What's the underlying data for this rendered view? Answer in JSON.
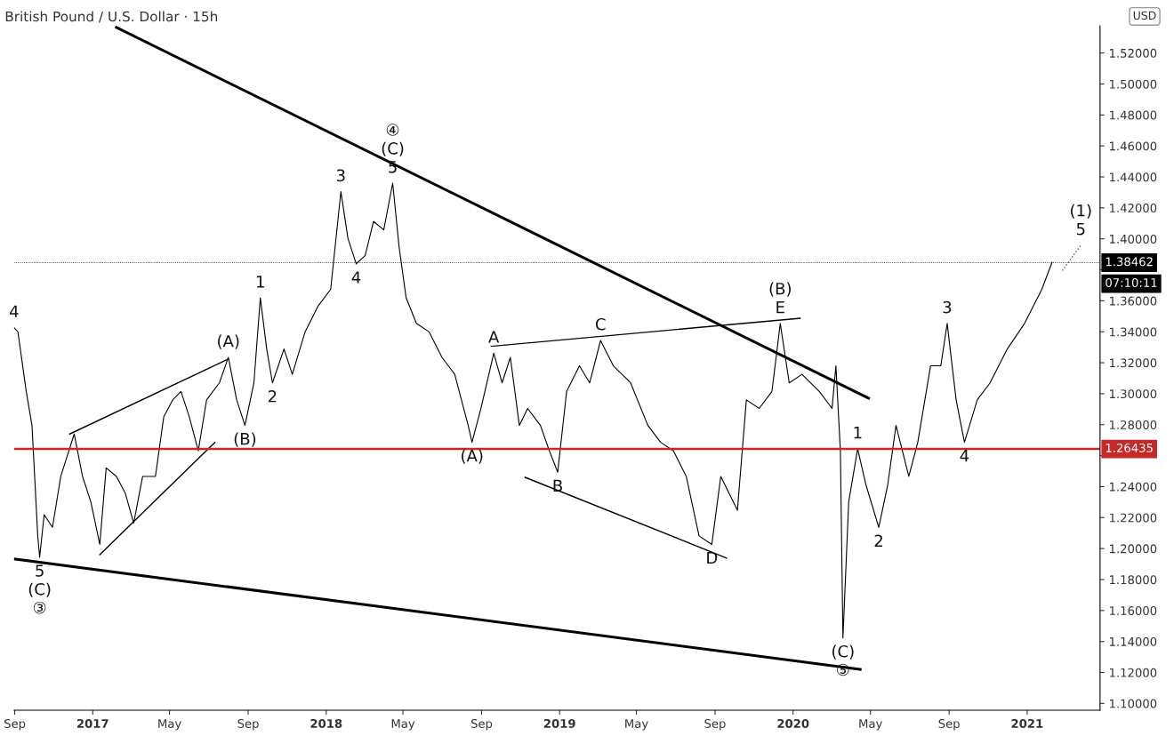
{
  "chart_data": {
    "type": "line",
    "title": "British Pound / U.S. Dollar · 15h",
    "xlim": [
      "2016-08-31",
      "2021-04-25"
    ],
    "xticks": [
      {
        "value": "2016-09-01",
        "label": "Sep"
      },
      {
        "value": "2017-01-01",
        "label": "2017"
      },
      {
        "value": "2017-05-01",
        "label": "May"
      },
      {
        "value": "2017-09-01",
        "label": "Sep"
      },
      {
        "value": "2018-01-01",
        "label": "2018"
      },
      {
        "value": "2018-05-01",
        "label": "May"
      },
      {
        "value": "2018-09-01",
        "label": "Sep"
      },
      {
        "value": "2019-01-01",
        "label": "2019"
      },
      {
        "value": "2019-05-01",
        "label": "May"
      },
      {
        "value": "2019-09-01",
        "label": "Sep"
      },
      {
        "value": "2020-01-01",
        "label": "2020"
      },
      {
        "value": "2020-05-01",
        "label": "May"
      },
      {
        "value": "2020-09-01",
        "label": "Sep"
      },
      {
        "value": "2021-01-01",
        "label": "2021"
      }
    ],
    "ylim": [
      1.0956,
      1.5376
    ],
    "yticks": [
      {
        "value": 1.1,
        "label": "1.10000"
      },
      {
        "value": 1.12,
        "label": "1.12000"
      },
      {
        "value": 1.14,
        "label": "1.14000"
      },
      {
        "value": 1.16,
        "label": "1.16000"
      },
      {
        "value": 1.18,
        "label": "1.18000"
      },
      {
        "value": 1.2,
        "label": "1.20000"
      },
      {
        "value": 1.22,
        "label": "1.22000"
      },
      {
        "value": 1.24,
        "label": "1.24000"
      },
      {
        "value": 1.26,
        "label": null
      },
      {
        "value": 1.28,
        "label": "1.28000"
      },
      {
        "value": 1.3,
        "label": "1.30000"
      },
      {
        "value": 1.32,
        "label": "1.32000"
      },
      {
        "value": 1.34,
        "label": "1.34000"
      },
      {
        "value": 1.36,
        "label": "1.36000"
      },
      {
        "value": 1.38,
        "label": null
      },
      {
        "value": 1.4,
        "label": "1.40000"
      },
      {
        "value": 1.42,
        "label": "1.42000"
      },
      {
        "value": 1.44,
        "label": "1.44000"
      },
      {
        "value": 1.46,
        "label": "1.46000"
      },
      {
        "value": 1.48,
        "label": "1.48000"
      },
      {
        "value": 1.5,
        "label": "1.50000"
      },
      {
        "value": 1.52,
        "label": "1.52000"
      }
    ],
    "grid": false,
    "legend": false,
    "marker": "none",
    "series": [
      {
        "color": "#000000",
        "line_style": "solid",
        "x": [
          "2016-08-31",
          "2016-09-06",
          "2016-09-19",
          "2016-09-28",
          "2016-10-07",
          "2016-10-10",
          "2016-10-17",
          "2016-10-30",
          "2016-11-12",
          "2016-12-03",
          "2016-12-16",
          "2016-12-29",
          "2017-01-12",
          "2017-01-22",
          "2017-02-07",
          "2017-02-21",
          "2017-03-06",
          "2017-03-20",
          "2017-04-09",
          "2017-04-22",
          "2017-05-06",
          "2017-05-19",
          "2017-06-01",
          "2017-06-15",
          "2017-06-28",
          "2017-07-18",
          "2017-08-01",
          "2017-08-14",
          "2017-08-27",
          "2017-09-10",
          "2017-09-20",
          "2017-09-30",
          "2017-10-09",
          "2017-10-27",
          "2017-11-09",
          "2017-11-29",
          "2017-12-19",
          "2018-01-08",
          "2018-01-24",
          "2018-02-04",
          "2018-02-17",
          "2018-03-03",
          "2018-03-16",
          "2018-04-01",
          "2018-04-15",
          "2018-04-25",
          "2018-05-06",
          "2018-05-22",
          "2018-06-11",
          "2018-07-01",
          "2018-07-21",
          "2018-08-11",
          "2018-08-17",
          "2018-08-31",
          "2018-09-20",
          "2018-10-03",
          "2018-10-16",
          "2018-10-30",
          "2018-11-12",
          "2018-12-02",
          "2018-12-16",
          "2018-12-29",
          "2019-01-12",
          "2019-02-01",
          "2019-02-17",
          "2019-03-06",
          "2019-03-26",
          "2019-04-22",
          "2019-05-19",
          "2019-06-08",
          "2019-06-28",
          "2019-07-18",
          "2019-08-07",
          "2019-08-27",
          "2019-09-10",
          "2019-09-23",
          "2019-10-06",
          "2019-10-20",
          "2019-11-09",
          "2019-11-29",
          "2019-12-12",
          "2019-12-26",
          "2020-01-15",
          "2020-02-11",
          "2020-03-02",
          "2020-03-08",
          "2020-03-15",
          "2020-03-19",
          "2020-03-28",
          "2020-04-11",
          "2020-04-24",
          "2020-05-14",
          "2020-05-28",
          "2020-06-10",
          "2020-06-30",
          "2020-07-14",
          "2020-08-03",
          "2020-08-19",
          "2020-08-29",
          "2020-09-12",
          "2020-09-25",
          "2020-10-15",
          "2020-11-04",
          "2020-12-01",
          "2020-12-28",
          "2021-01-24",
          "2021-02-09"
        ],
        "values": [
          1.3427,
          1.3399,
          1.3015,
          1.2795,
          1.2082,
          1.1944,
          1.2219,
          1.2137,
          1.2466,
          1.274,
          1.2466,
          1.2301,
          1.2027,
          1.2521,
          1.2466,
          1.2356,
          1.2164,
          1.2466,
          1.2466,
          1.285,
          1.296,
          1.3015,
          1.285,
          1.2631,
          1.296,
          1.307,
          1.3235,
          1.296,
          1.2795,
          1.307,
          1.3619,
          1.3289,
          1.307,
          1.3289,
          1.3125,
          1.3399,
          1.3564,
          1.3674,
          1.4305,
          1.4003,
          1.3838,
          1.3893,
          1.4113,
          1.4058,
          1.436,
          1.3948,
          1.3619,
          1.3454,
          1.3399,
          1.3235,
          1.3125,
          1.2795,
          1.2686,
          1.2905,
          1.3262,
          1.307,
          1.3235,
          1.2795,
          1.2905,
          1.2795,
          1.2631,
          1.2493,
          1.3015,
          1.318,
          1.307,
          1.3344,
          1.318,
          1.307,
          1.2795,
          1.2686,
          1.2631,
          1.2466,
          1.2082,
          1.2027,
          1.2466,
          1.2356,
          1.2247,
          1.296,
          1.2905,
          1.3015,
          1.3454,
          1.307,
          1.3125,
          1.3015,
          1.2905,
          1.318,
          1.2631,
          1.1423,
          1.2301,
          1.2644,
          1.2411,
          1.2137,
          1.2411,
          1.2795,
          1.2466,
          1.2686,
          1.318,
          1.318,
          1.3454,
          1.296,
          1.2686,
          1.296,
          1.307,
          1.3289,
          1.3454,
          1.3674,
          1.3849
        ]
      },
      {
        "color": "#000000",
        "line_style": "solid",
        "x": [
          "2017-02-07",
          "2020-04-28"
        ],
        "values": [
          1.5365,
          1.2971
        ]
      },
      {
        "color": "#000000",
        "line_style": "solid",
        "x": [
          "2016-08-31",
          "2020-04-15"
        ],
        "values": [
          1.1933,
          1.122
        ]
      },
      {
        "color": "#000000",
        "line_style": "solid",
        "x": [
          "2016-11-26",
          "2017-08-01"
        ],
        "values": [
          1.274,
          1.3224
        ]
      },
      {
        "color": "#000000",
        "line_style": "solid",
        "x": [
          "2017-01-12",
          "2017-07-11"
        ],
        "values": [
          1.1961,
          1.2686
        ]
      },
      {
        "color": "#000000",
        "line_style": "solid",
        "x": [
          "2018-09-16",
          "2020-01-12"
        ],
        "values": [
          1.3306,
          1.3487
        ]
      },
      {
        "color": "#000000",
        "line_style": "solid",
        "x": [
          "2018-11-08",
          "2019-09-19"
        ],
        "values": [
          1.246,
          1.1939
        ]
      },
      {
        "color": "#555555",
        "line_style": "dotted",
        "x": [
          "2021-02-25",
          "2021-03-26"
        ],
        "values": [
          1.3795,
          1.3959
        ]
      }
    ],
    "ref_lines": [
      {
        "axis": "y",
        "value": 1.26435,
        "label": "1.26435",
        "color": "#c62828",
        "line_style": "solid"
      },
      {
        "axis": "y",
        "value": 1.38462,
        "label": "1.38462",
        "color": "#000000",
        "line_style": "dotted"
      }
    ],
    "annotations": [
      {
        "text": "4",
        "x": "2016-08-31",
        "y": 1.3427
      },
      {
        "text": "5",
        "x": "2016-10-10",
        "y": 1.1944
      },
      {
        "text": "(C)",
        "x": "2016-10-10",
        "y": 1.1944
      },
      {
        "text": "③",
        "x": "2016-10-10",
        "y": 1.1944
      },
      {
        "text": "(A)",
        "x": "2017-08-01",
        "y": 1.3235
      },
      {
        "text": "(B)",
        "x": "2017-08-27",
        "y": 1.2795
      },
      {
        "text": "1",
        "x": "2017-09-20",
        "y": 1.3619
      },
      {
        "text": "2",
        "x": "2017-10-09",
        "y": 1.307
      },
      {
        "text": "3",
        "x": "2018-01-24",
        "y": 1.4305
      },
      {
        "text": "4",
        "x": "2018-02-17",
        "y": 1.3838
      },
      {
        "text": "5",
        "x": "2018-04-15",
        "y": 1.436
      },
      {
        "text": "(C)",
        "x": "2018-04-15",
        "y": 1.436
      },
      {
        "text": "④",
        "x": "2018-04-15",
        "y": 1.436
      },
      {
        "text": "(A)",
        "x": "2018-08-17",
        "y": 1.2686
      },
      {
        "text": "A",
        "x": "2018-09-20",
        "y": 1.3262
      },
      {
        "text": "B",
        "x": "2018-12-29",
        "y": 1.2493
      },
      {
        "text": "C",
        "x": "2019-03-06",
        "y": 1.3344
      },
      {
        "text": "D",
        "x": "2019-08-27",
        "y": 1.2027
      },
      {
        "text": "E",
        "x": "2019-12-12",
        "y": 1.3454
      },
      {
        "text": "(B)",
        "x": "2019-12-12",
        "y": 1.3454
      },
      {
        "text": "(C)",
        "x": "2020-03-19",
        "y": 1.1423
      },
      {
        "text": "⑤",
        "x": "2020-03-19",
        "y": 1.1423
      },
      {
        "text": "1",
        "x": "2020-04-11",
        "y": 1.2644
      },
      {
        "text": "2",
        "x": "2020-05-14",
        "y": 1.2137
      },
      {
        "text": "3",
        "x": "2020-08-29",
        "y": 1.3454
      },
      {
        "text": "4",
        "x": "2020-09-25",
        "y": 1.2686
      },
      {
        "text": "5",
        "x": "2021-03-26",
        "y": 1.3959
      },
      {
        "text": "(1)",
        "x": "2021-03-26",
        "y": 1.3959
      },
      "07:10:11",
      "USD"
    ]
  }
}
